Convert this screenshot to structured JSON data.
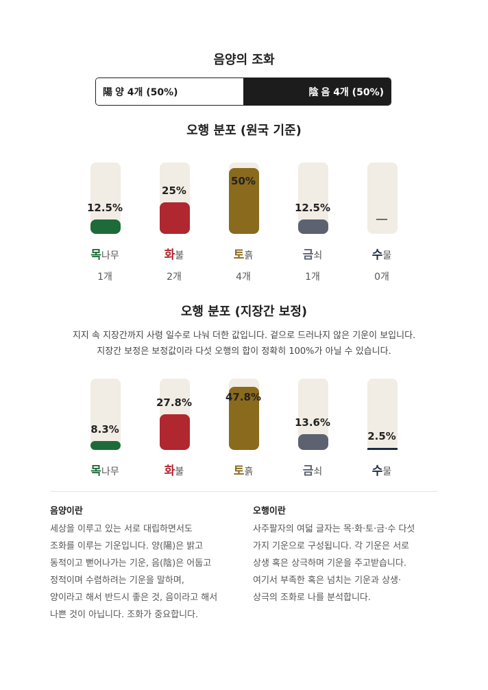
{
  "yinyang": {
    "title": "음양의 조화",
    "yang_hanja": "陽",
    "yang_label": "양 4개 (50%)",
    "yang_share": 0.5,
    "yin_hanja": "陰",
    "yin_label": "음 4개 (50%)",
    "yin_share": 0.5
  },
  "ohaeng_base": {
    "title": "오행 분포 (원국 기준)",
    "elements": [
      {
        "hanja": "목",
        "korean": "나무",
        "pct": "12.5%",
        "value": 12.5,
        "count": "1개",
        "color": "#1e6b3a"
      },
      {
        "hanja": "화",
        "korean": "불",
        "pct": "25%",
        "value": 25,
        "count": "2개",
        "color": "#b0272f"
      },
      {
        "hanja": "토",
        "korean": "흙",
        "pct": "50%",
        "value": 50,
        "count": "4개",
        "color": "#8a6a1d"
      },
      {
        "hanja": "금",
        "korean": "쇠",
        "pct": "12.5%",
        "value": 12.5,
        "count": "1개",
        "color": "#5c6270"
      },
      {
        "hanja": "수",
        "korean": "물",
        "pct": "—",
        "value": 0,
        "count": "0개",
        "color": "#1c2a45"
      }
    ]
  },
  "ohaeng_adjusted": {
    "title": "오행 분포 (지장간 보정)",
    "desc_line1": "지지 속 지장간까지 사령 일수로 나눠 더한 값입니다. 겉으로 드러나지 않은 기운이 보입니다.",
    "desc_line2": "지장간 보정은 보정값이라 다섯 오행의 합이 정확히 100%가 아닐 수 있습니다.",
    "elements": [
      {
        "hanja": "목",
        "korean": "나무",
        "pct": "8.3%",
        "value": 8.3,
        "color": "#1e6b3a"
      },
      {
        "hanja": "화",
        "korean": "불",
        "pct": "27.8%",
        "value": 27.8,
        "color": "#b0272f"
      },
      {
        "hanja": "토",
        "korean": "흙",
        "pct": "47.8%",
        "value": 47.8,
        "color": "#8a6a1d"
      },
      {
        "hanja": "금",
        "korean": "쇠",
        "pct": "13.6%",
        "value": 13.6,
        "color": "#5c6270"
      },
      {
        "hanja": "수",
        "korean": "물",
        "pct": "2.5%",
        "value": 2.5,
        "color": "#1c2a45"
      }
    ]
  },
  "info": {
    "yinyang_title": "음양이란",
    "yinyang_lines": [
      "세상을 이루고 있는 서로 대립하면서도",
      "조화를 이루는 기운입니다. 양(陽)은 밝고",
      "동적이고 뻗어나가는 기운, 음(陰)은 어둡고",
      "정적이며 수렴하려는 기운을 말하며,",
      "양이라고 해서 반드시 좋은 것, 음이라고 해서",
      "나쁜 것이 아닙니다. 조화가 중요합니다."
    ],
    "ohaeng_title": "오행이란",
    "ohaeng_lines": [
      "사주팔자의 여덟 글자는 목·화·토·금·수 다섯",
      "가지 기운으로 구성됩니다. 각 기운은 서로",
      "상생 혹은 상극하며 기운을 주고받습니다.",
      "여기서 부족한 혹은 넘치는 기운과 상생·",
      "상극의 조화로 나를 분석합니다."
    ]
  }
}
